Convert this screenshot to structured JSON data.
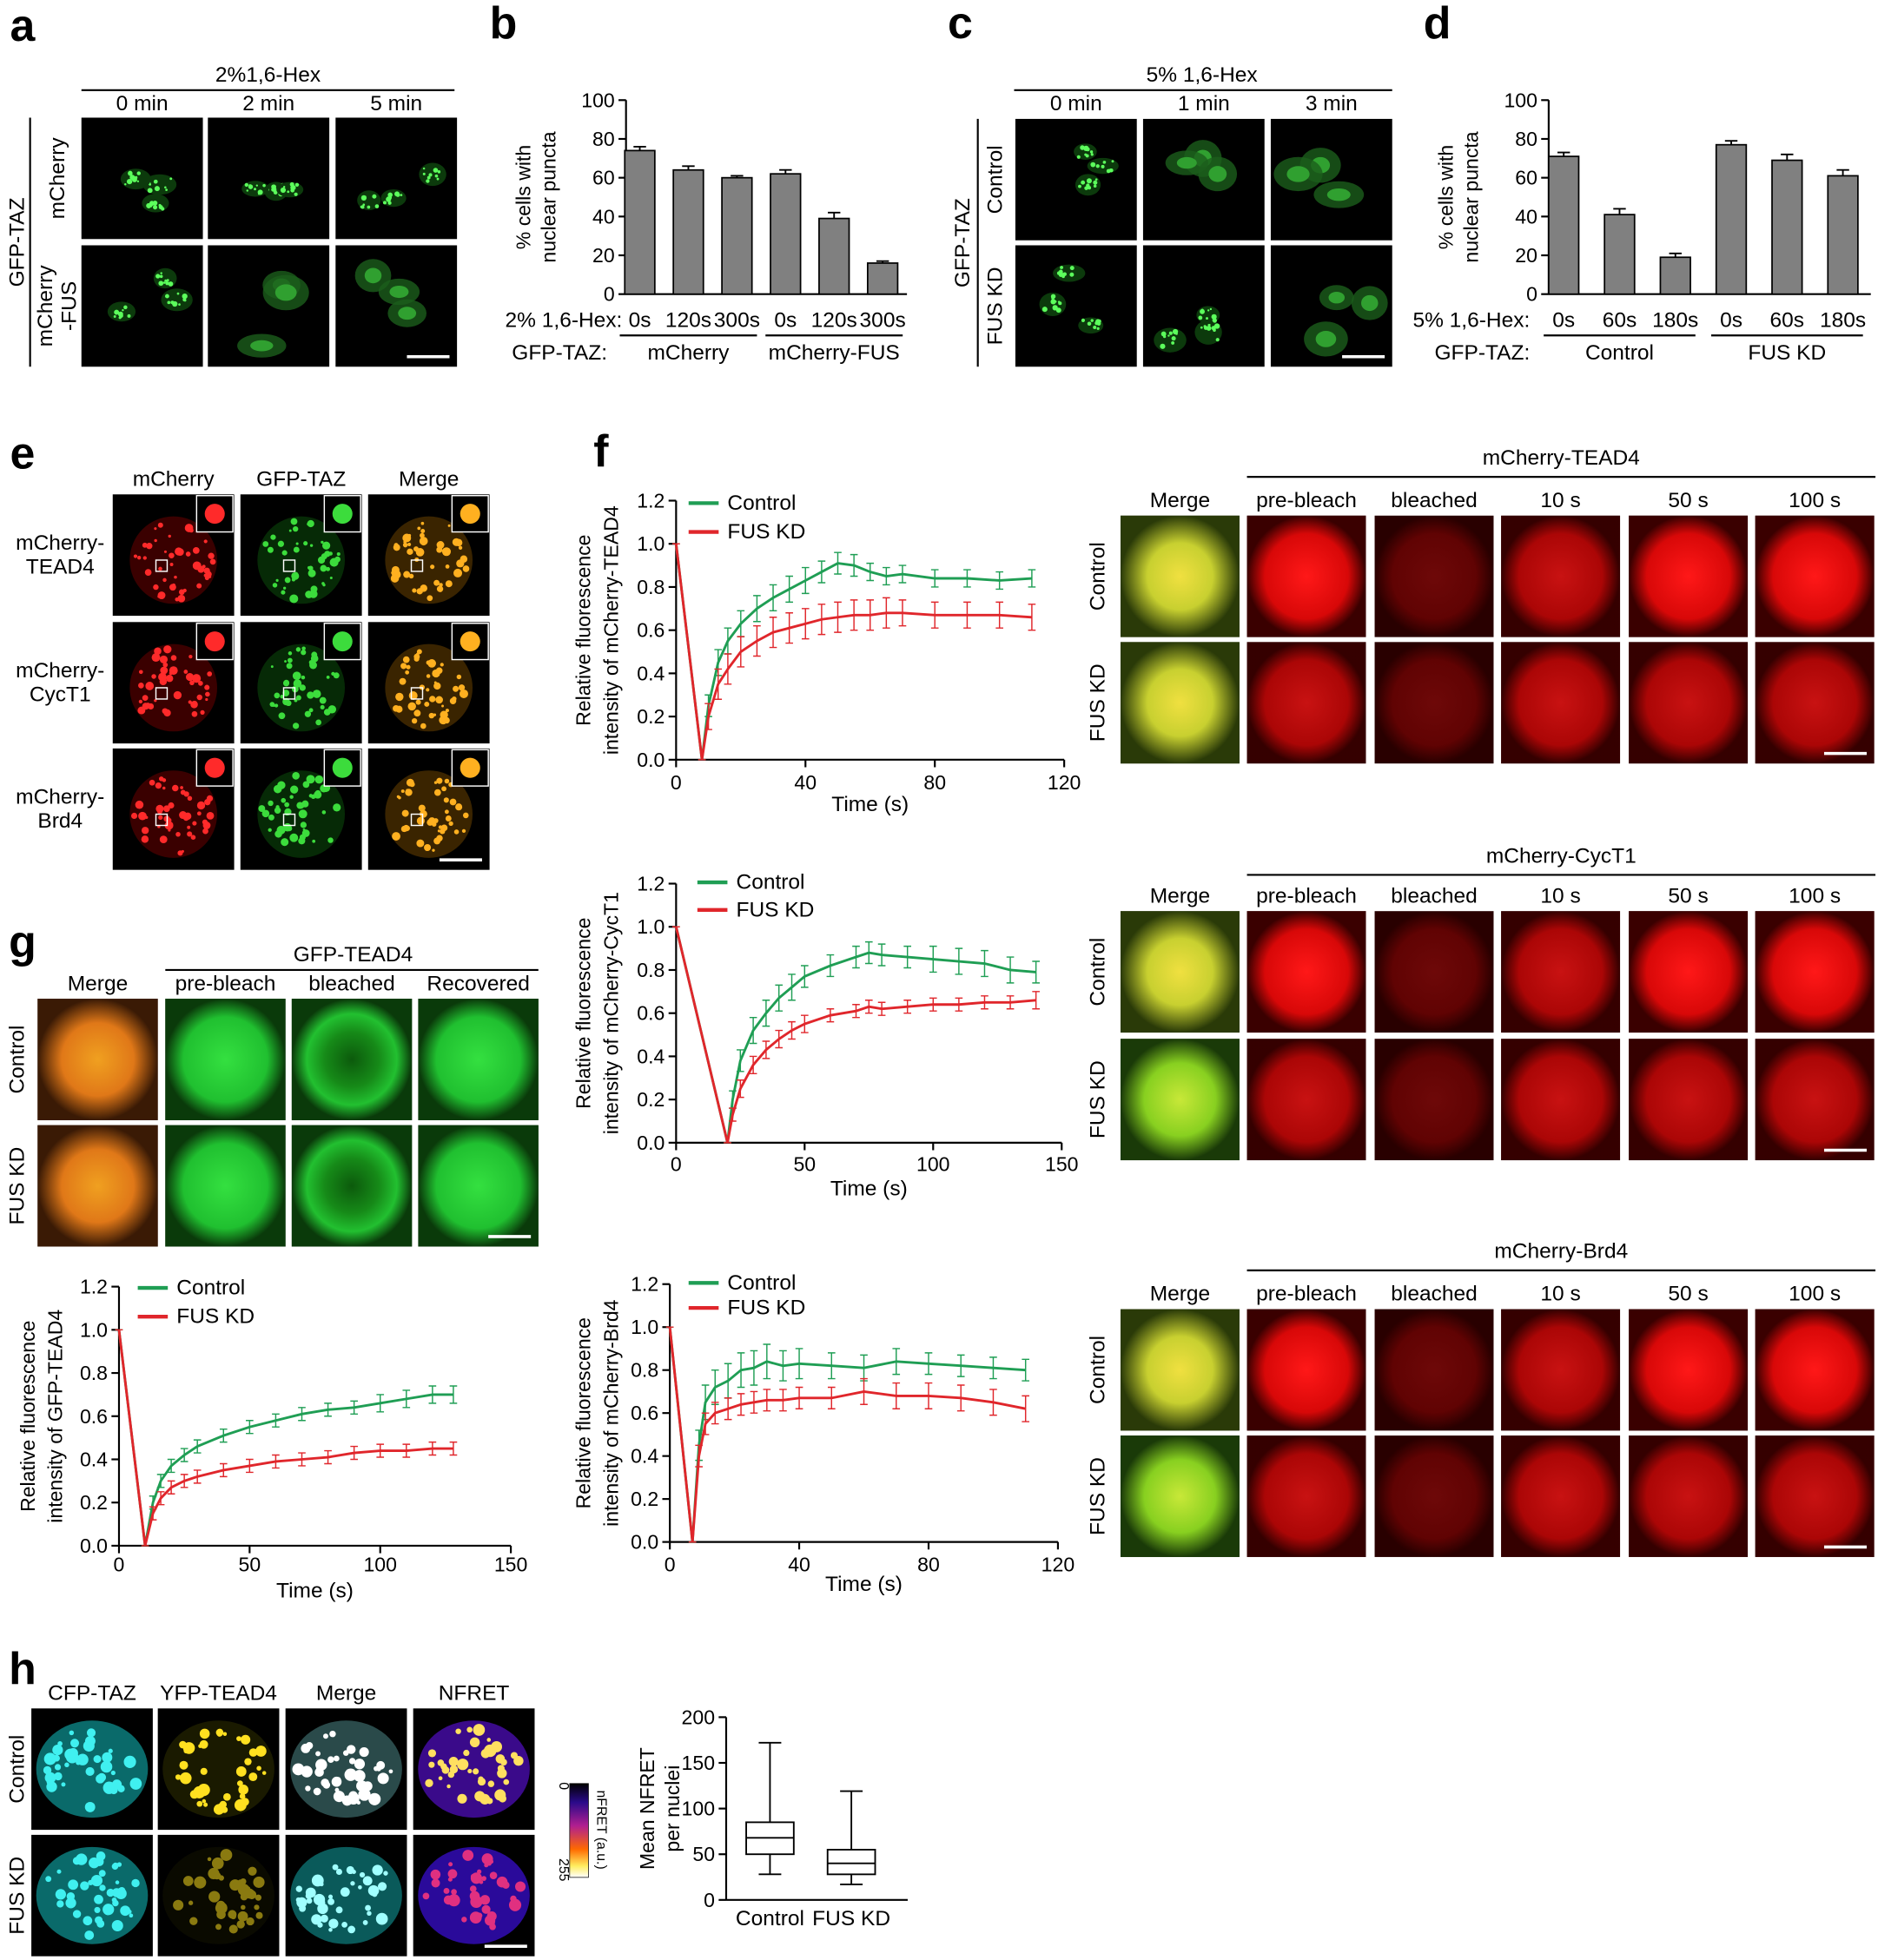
{
  "panel_letters": [
    "a",
    "b",
    "c",
    "d",
    "e",
    "f",
    "g",
    "h"
  ],
  "image_panels": [
    {
      "header": "2%1,6-Hex",
      "columns": [
        "0 min",
        "2 min",
        "5 min"
      ],
      "rows": [
        [
          "mCherry"
        ],
        [
          "mCherry",
          "-FUS"
        ]
      ],
      "group": "GFP-TAZ"
    },
    {
      "header": "5% 1,6-Hex",
      "columns": [
        "0 min",
        "1 min",
        "3 min"
      ],
      "rows": [
        [
          "Control"
        ],
        [
          "FUS KD"
        ]
      ],
      "group": "GFP-TAZ"
    },
    {
      "columns": [
        "mCherry",
        "GFP-TAZ",
        "Merge"
      ],
      "rows": [
        [
          "mCherry-",
          "TEAD4"
        ],
        [
          "mCherry-",
          "CycT1"
        ],
        [
          "mCherry-",
          "Brd4"
        ]
      ]
    },
    {
      "header": "mCherry-TEAD4",
      "columns": [
        "Merge",
        "pre-bleach",
        "bleached",
        "10 s",
        "50 s",
        "100 s"
      ],
      "rows": [
        [
          "Control"
        ],
        [
          "FUS KD"
        ]
      ]
    },
    {
      "header": "mCherry-CycT1",
      "columns": [
        "Merge",
        "pre-bleach",
        "bleached",
        "10 s",
        "50 s",
        "100 s"
      ],
      "rows": [
        [
          "Control"
        ],
        [
          "FUS KD"
        ]
      ]
    },
    {
      "header": "mCherry-Brd4",
      "columns": [
        "Merge",
        "pre-bleach",
        "bleached",
        "10 s",
        "50 s",
        "100 s"
      ],
      "rows": [
        [
          "Control"
        ],
        [
          "FUS KD"
        ]
      ]
    },
    {
      "header": "GFP-TEAD4",
      "columns": [
        "Merge",
        "pre-bleach",
        "bleached",
        "Recovered"
      ],
      "rows": [
        [
          "Control"
        ],
        [
          "FUS KD"
        ]
      ]
    },
    {
      "columns": [
        "CFP-TAZ",
        "YFP-TEAD4",
        "Merge",
        "NFRET"
      ],
      "rows": [
        [
          "Control"
        ],
        [
          "FUS KD"
        ]
      ]
    }
  ],
  "colorbar": {
    "min": 0,
    "max": 255,
    "label": "nFRET (a.u.)"
  },
  "chart_data": [
    {
      "type": "bar",
      "ylabel": [
        "% cells with",
        "nuclear puncta"
      ],
      "categories": [
        "0s",
        "120s",
        "300s",
        "0s",
        "120s",
        "300s"
      ],
      "values": [
        74,
        64,
        60,
        62,
        39,
        16
      ],
      "errors": [
        2,
        2,
        1,
        2,
        3,
        1
      ],
      "color": "#808080",
      "row_labels": [
        "2% 1,6-Hex:",
        "GFP-TAZ:"
      ],
      "groups": [
        "mCherry",
        "mCherry-FUS"
      ],
      "ylim": [
        0,
        100
      ],
      "yticks": [
        0,
        20,
        40,
        60,
        80,
        100
      ]
    },
    {
      "type": "bar",
      "ylabel": [
        "% cells with",
        "nuclear puncta"
      ],
      "categories": [
        "0s",
        "60s",
        "180s",
        "0s",
        "60s",
        "180s"
      ],
      "values": [
        71,
        41,
        19,
        77,
        69,
        61
      ],
      "errors": [
        2,
        3,
        2,
        2,
        3,
        3
      ],
      "color": "#808080",
      "row_labels": [
        "5% 1,6-Hex:",
        "GFP-TAZ:"
      ],
      "groups": [
        "Control",
        "FUS KD"
      ],
      "ylim": [
        0,
        100
      ],
      "yticks": [
        0,
        20,
        40,
        60,
        80,
        100
      ]
    },
    {
      "type": "line",
      "ylabel": [
        "Relative fluorescence",
        "intensity of mCherry-TEAD4"
      ],
      "xlabel": "Time (s)",
      "x": [
        0,
        8,
        10,
        13,
        16,
        20,
        25,
        30,
        35,
        40,
        45,
        50,
        55,
        60,
        65,
        70,
        80,
        90,
        100,
        110
      ],
      "series": [
        {
          "name": "Control",
          "color": "#1f9e54",
          "values": [
            1.0,
            0.0,
            0.25,
            0.45,
            0.55,
            0.63,
            0.7,
            0.75,
            0.79,
            0.83,
            0.87,
            0.91,
            0.9,
            0.87,
            0.85,
            0.86,
            0.84,
            0.84,
            0.83,
            0.84
          ],
          "errors": [
            0,
            0,
            0.05,
            0.06,
            0.06,
            0.06,
            0.06,
            0.06,
            0.06,
            0.06,
            0.05,
            0.05,
            0.05,
            0.04,
            0.04,
            0.04,
            0.04,
            0.04,
            0.04,
            0.04
          ]
        },
        {
          "name": "FUS KD",
          "color": "#e0262b",
          "values": [
            1.0,
            0.0,
            0.2,
            0.35,
            0.42,
            0.5,
            0.55,
            0.59,
            0.61,
            0.63,
            0.65,
            0.66,
            0.67,
            0.67,
            0.68,
            0.68,
            0.67,
            0.67,
            0.67,
            0.66
          ],
          "errors": [
            0,
            0,
            0.06,
            0.07,
            0.07,
            0.07,
            0.07,
            0.07,
            0.07,
            0.07,
            0.07,
            0.07,
            0.07,
            0.07,
            0.07,
            0.06,
            0.06,
            0.06,
            0.06,
            0.06
          ]
        }
      ],
      "xlim": [
        0,
        120
      ],
      "xticks": [
        0,
        40,
        80,
        120
      ],
      "ylim": [
        0,
        1.2
      ],
      "yticks": [
        {
          "value": 0,
          "label": "0.0"
        },
        0.2,
        0.4,
        0.6,
        0.8,
        {
          "value": 1,
          "label": "1.0"
        },
        1.2
      ]
    },
    {
      "type": "line",
      "ylabel": [
        "Relative fluorescence",
        "intensity of mCherry-CycT1"
      ],
      "xlabel": "Time (s)",
      "x": [
        0,
        20,
        22,
        25,
        30,
        35,
        40,
        45,
        50,
        60,
        70,
        75,
        80,
        90,
        100,
        110,
        120,
        130,
        140
      ],
      "series": [
        {
          "name": "Control",
          "color": "#1f9e54",
          "values": [
            1.0,
            0.0,
            0.2,
            0.38,
            0.52,
            0.6,
            0.67,
            0.72,
            0.77,
            0.82,
            0.86,
            0.88,
            0.87,
            0.86,
            0.85,
            0.84,
            0.83,
            0.8,
            0.79
          ],
          "errors": [
            0,
            0,
            0.04,
            0.05,
            0.06,
            0.06,
            0.06,
            0.06,
            0.05,
            0.05,
            0.05,
            0.05,
            0.05,
            0.05,
            0.06,
            0.06,
            0.06,
            0.06,
            0.05
          ]
        },
        {
          "name": "FUS KD",
          "color": "#e0262b",
          "values": [
            1.0,
            0.0,
            0.13,
            0.25,
            0.36,
            0.43,
            0.48,
            0.52,
            0.55,
            0.59,
            0.61,
            0.63,
            0.62,
            0.63,
            0.64,
            0.64,
            0.65,
            0.65,
            0.66
          ],
          "errors": [
            0,
            0,
            0.03,
            0.04,
            0.04,
            0.04,
            0.04,
            0.04,
            0.04,
            0.03,
            0.03,
            0.03,
            0.03,
            0.03,
            0.03,
            0.03,
            0.03,
            0.03,
            0.04
          ]
        }
      ],
      "xlim": [
        0,
        150
      ],
      "xticks": [
        0,
        50,
        100,
        150
      ],
      "ylim": [
        0,
        1.2
      ],
      "yticks": [
        {
          "value": 0,
          "label": "0.0"
        },
        0.2,
        0.4,
        0.6,
        0.8,
        {
          "value": 1,
          "label": "1.0"
        },
        1.2
      ]
    },
    {
      "type": "line",
      "ylabel": [
        "Relative fluorescence",
        "intensity of mCherry-Brd4"
      ],
      "xlabel": "Time (s)",
      "x": [
        0,
        7,
        9,
        11,
        14,
        18,
        22,
        26,
        30,
        35,
        40,
        50,
        60,
        70,
        80,
        90,
        100,
        110
      ],
      "series": [
        {
          "name": "Control",
          "color": "#1f9e54",
          "values": [
            1.0,
            0.0,
            0.45,
            0.65,
            0.72,
            0.75,
            0.8,
            0.81,
            0.84,
            0.82,
            0.83,
            0.82,
            0.81,
            0.84,
            0.83,
            0.82,
            0.81,
            0.8
          ],
          "errors": [
            0,
            0,
            0.07,
            0.08,
            0.08,
            0.08,
            0.08,
            0.08,
            0.08,
            0.07,
            0.07,
            0.06,
            0.06,
            0.06,
            0.05,
            0.05,
            0.05,
            0.05
          ]
        },
        {
          "name": "FUS KD",
          "color": "#e0262b",
          "values": [
            1.0,
            0.0,
            0.4,
            0.55,
            0.6,
            0.62,
            0.64,
            0.65,
            0.66,
            0.66,
            0.67,
            0.67,
            0.7,
            0.68,
            0.68,
            0.67,
            0.65,
            0.62
          ],
          "errors": [
            0,
            0,
            0.05,
            0.05,
            0.05,
            0.05,
            0.05,
            0.05,
            0.05,
            0.05,
            0.05,
            0.05,
            0.06,
            0.06,
            0.06,
            0.06,
            0.06,
            0.06
          ]
        }
      ],
      "xlim": [
        0,
        120
      ],
      "xticks": [
        0,
        40,
        80,
        120
      ],
      "ylim": [
        0,
        1.2
      ],
      "yticks": [
        {
          "value": 0,
          "label": "0.0"
        },
        0.2,
        0.4,
        0.6,
        0.8,
        {
          "value": 1,
          "label": "1.0"
        },
        1.2
      ]
    },
    {
      "type": "line",
      "ylabel": [
        "Relative fluorescence",
        "intensity of GFP-TEAD4"
      ],
      "xlabel": "Time (s)",
      "x": [
        0,
        10,
        13,
        16,
        20,
        25,
        30,
        40,
        50,
        60,
        70,
        80,
        90,
        100,
        110,
        120,
        128
      ],
      "series": [
        {
          "name": "Control",
          "color": "#1f9e54",
          "values": [
            1.0,
            0.0,
            0.2,
            0.3,
            0.37,
            0.42,
            0.46,
            0.51,
            0.55,
            0.58,
            0.61,
            0.63,
            0.64,
            0.66,
            0.68,
            0.7,
            0.7
          ],
          "errors": [
            0,
            0,
            0.03,
            0.03,
            0.03,
            0.03,
            0.03,
            0.03,
            0.03,
            0.03,
            0.03,
            0.03,
            0.03,
            0.04,
            0.04,
            0.04,
            0.04
          ]
        },
        {
          "name": "FUS KD",
          "color": "#e0262b",
          "values": [
            1.0,
            0.0,
            0.15,
            0.22,
            0.27,
            0.3,
            0.32,
            0.35,
            0.37,
            0.39,
            0.4,
            0.41,
            0.43,
            0.44,
            0.44,
            0.45,
            0.45
          ],
          "errors": [
            0,
            0,
            0.03,
            0.03,
            0.03,
            0.03,
            0.03,
            0.03,
            0.03,
            0.03,
            0.03,
            0.03,
            0.03,
            0.03,
            0.03,
            0.03,
            0.03
          ]
        }
      ],
      "xlim": [
        0,
        150
      ],
      "xticks": [
        0,
        50,
        100,
        150
      ],
      "ylim": [
        0,
        1.2
      ],
      "yticks": [
        {
          "value": 0,
          "label": "0.0"
        },
        0.2,
        0.4,
        0.6,
        0.8,
        {
          "value": 1,
          "label": "1.0"
        },
        1.2
      ]
    },
    {
      "type": "box",
      "ylabel": [
        "Mean NFRET",
        "per nuclei"
      ],
      "categories": [
        "Control",
        "FUS KD"
      ],
      "boxes": [
        {
          "min": 28,
          "q1": 50,
          "median": 68,
          "q3": 85,
          "max": 172
        },
        {
          "min": 17,
          "q1": 28,
          "median": 40,
          "q3": 55,
          "max": 119
        }
      ],
      "ylim": [
        0,
        200
      ],
      "yticks": [
        0,
        50,
        100,
        150,
        200
      ]
    }
  ]
}
